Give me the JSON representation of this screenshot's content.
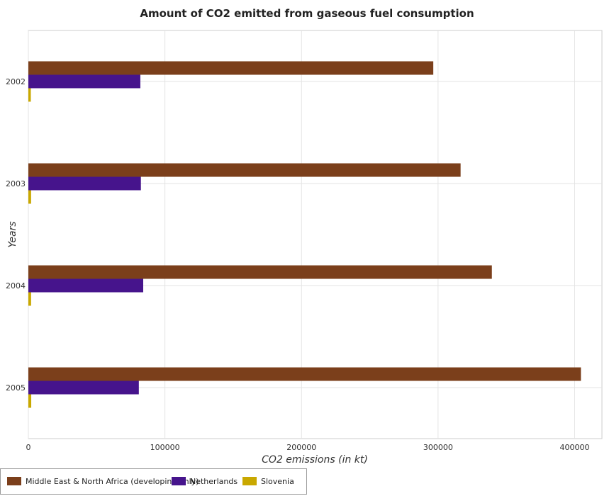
{
  "chart_data": {
    "type": "bar",
    "orientation": "horizontal",
    "title": "Amount of CO2 emitted from gaseous fuel consumption",
    "xlabel": "CO2 emissions (in kt)",
    "ylabel": "Years",
    "categories": [
      "2002",
      "2003",
      "2004",
      "2005"
    ],
    "xlim": [
      0,
      420000
    ],
    "x_ticks": [
      0,
      100000,
      200000,
      300000,
      400000
    ],
    "x_tick_labels": [
      "0",
      "100000",
      "200000",
      "300000",
      "400000"
    ],
    "grid": true,
    "legend_position": "bottom-left",
    "series": [
      {
        "name": "Middle East & North Africa (developing only)",
        "color": "#7b3f1b",
        "values": [
          296500,
          316500,
          339400,
          404600
        ]
      },
      {
        "name": "Netherlands",
        "color": "#46148c",
        "values": [
          82000,
          82400,
          84100,
          80900
        ]
      },
      {
        "name": "Slovenia",
        "color": "#c9a800",
        "values": [
          1800,
          2000,
          2000,
          2100
        ]
      }
    ]
  }
}
